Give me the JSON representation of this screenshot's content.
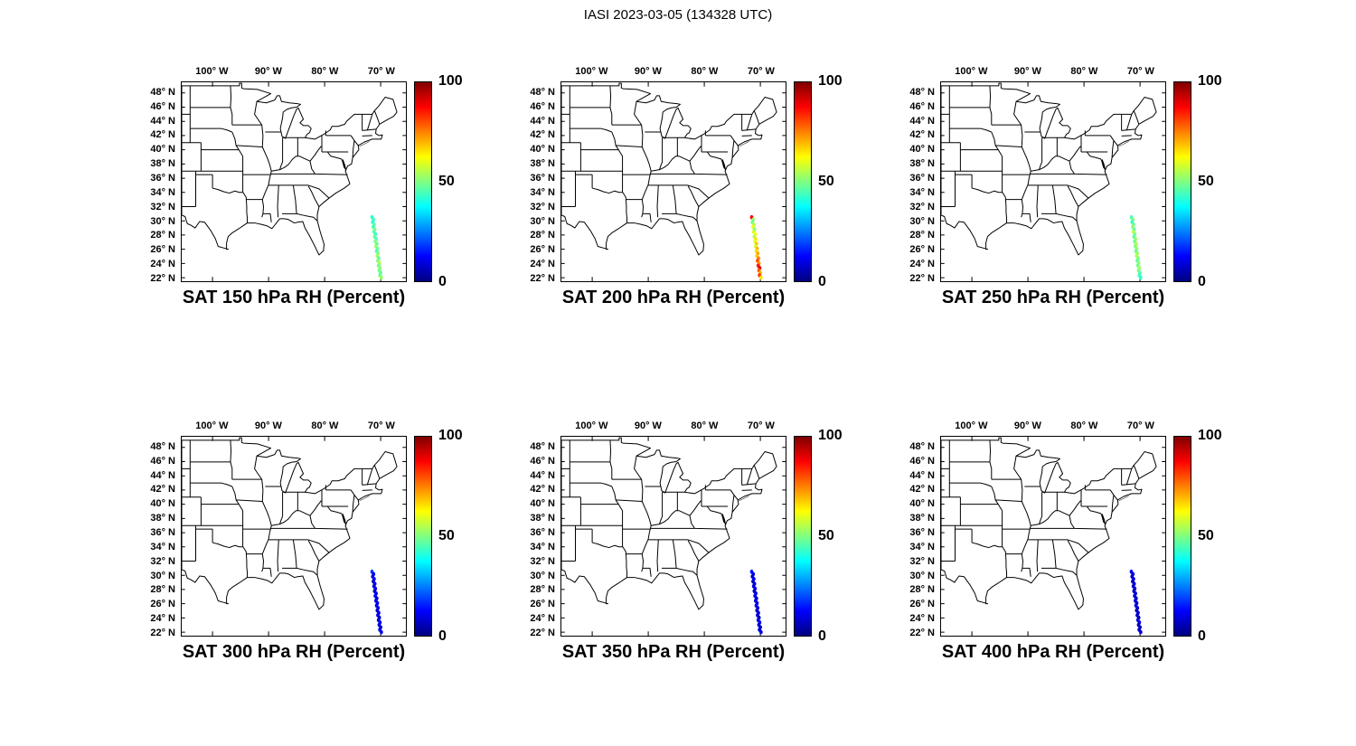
{
  "figure": {
    "title": "IASI 2023-03-05 (134328 UTC)"
  },
  "axes": {
    "lon_range": [
      -105.5,
      -65.5
    ],
    "lat_range": [
      21.5,
      49.5
    ],
    "x_ticks": [
      {
        "label": "100° W",
        "lon": -100
      },
      {
        "label": "90° W",
        "lon": -90
      },
      {
        "label": "80° W",
        "lon": -80
      },
      {
        "label": "70° W",
        "lon": -70
      }
    ],
    "y_ticks": [
      {
        "label": "48° N",
        "lat": 48
      },
      {
        "label": "46° N",
        "lat": 46
      },
      {
        "label": "44° N",
        "lat": 44
      },
      {
        "label": "42° N",
        "lat": 42
      },
      {
        "label": "40° N",
        "lat": 40
      },
      {
        "label": "38° N",
        "lat": 38
      },
      {
        "label": "36° N",
        "lat": 36
      },
      {
        "label": "34° N",
        "lat": 34
      },
      {
        "label": "32° N",
        "lat": 32
      },
      {
        "label": "30° N",
        "lat": 30
      },
      {
        "label": "28° N",
        "lat": 28
      },
      {
        "label": "26° N",
        "lat": 26
      },
      {
        "label": "24° N",
        "lat": 24
      },
      {
        "label": "22° N",
        "lat": 22
      }
    ]
  },
  "colorbar": {
    "min": 0,
    "max": 100,
    "tick_labels": [
      "100",
      "50",
      "0"
    ],
    "colormap": "jet",
    "gradient_top_to_bottom": [
      "#800000",
      "#ff0000",
      "#ff8000",
      "#ffff00",
      "#80ff80",
      "#00ffff",
      "#0080ff",
      "#0000ff",
      "#000080"
    ]
  },
  "colors": {
    "frame": "#000000",
    "background": "#ffffff",
    "map_outline": "#000000"
  },
  "chart_data": {
    "type": "scatter",
    "figure_title": "IASI 2023-03-05 (134328 UTC)",
    "value_units": "Percent",
    "value_range": [
      0,
      100
    ],
    "track_lonlat": [
      [
        -71.55,
        30.5
      ],
      [
        -71.27,
        30.16
      ],
      [
        -71.43,
        29.82
      ],
      [
        -71.16,
        29.48
      ],
      [
        -71.32,
        29.14
      ],
      [
        -71.04,
        28.8
      ],
      [
        -71.2,
        28.46
      ],
      [
        -70.93,
        28.12
      ],
      [
        -71.09,
        27.78
      ],
      [
        -70.81,
        27.44
      ],
      [
        -70.97,
        27.1
      ],
      [
        -70.69,
        26.76
      ],
      [
        -70.85,
        26.42
      ],
      [
        -70.58,
        26.08
      ],
      [
        -70.74,
        25.74
      ],
      [
        -70.46,
        25.4
      ],
      [
        -70.62,
        25.06
      ],
      [
        -70.34,
        24.72
      ],
      [
        -70.51,
        24.38
      ],
      [
        -70.23,
        24.04
      ],
      [
        -70.39,
        23.7
      ],
      [
        -70.11,
        23.36
      ],
      [
        -70.27,
        23.02
      ],
      [
        -70.0,
        22.68
      ],
      [
        -70.16,
        22.34
      ],
      [
        -69.88,
        22.0
      ]
    ],
    "panels": [
      {
        "title": "SAT 150 hPa RH (Percent)",
        "level_hPa": 150,
        "rh_values": [
          42,
          45,
          40,
          47,
          44,
          50,
          46,
          43,
          48,
          45,
          50,
          47,
          52,
          48,
          45,
          50,
          53,
          47,
          50,
          55,
          48,
          52,
          50,
          46,
          49,
          52
        ]
      },
      {
        "title": "SAT 200 hPa RH (Percent)",
        "level_hPa": 200,
        "rh_values": [
          88,
          52,
          48,
          55,
          60,
          50,
          58,
          62,
          55,
          65,
          60,
          68,
          58,
          70,
          65,
          72,
          68,
          75,
          80,
          72,
          85,
          90,
          78,
          70,
          82,
          65
        ]
      },
      {
        "title": "SAT 250 hPa RH (Percent)",
        "level_hPa": 250,
        "rh_values": [
          45,
          50,
          42,
          48,
          52,
          46,
          55,
          50,
          47,
          52,
          48,
          55,
          50,
          53,
          48,
          52,
          55,
          50,
          47,
          52,
          49,
          53,
          50,
          46,
          44,
          42
        ]
      },
      {
        "title": "SAT 300 hPa RH (Percent)",
        "level_hPa": 300,
        "rh_values": [
          18,
          12,
          10,
          14,
          8,
          12,
          9,
          11,
          7,
          10,
          12,
          8,
          11,
          9,
          12,
          10,
          8,
          11,
          9,
          7,
          10,
          12,
          9,
          8,
          10,
          11
        ]
      },
      {
        "title": "SAT 350 hPa RH (Percent)",
        "level_hPa": 350,
        "rh_values": [
          15,
          10,
          8,
          12,
          7,
          10,
          8,
          11,
          6,
          9,
          11,
          7,
          10,
          8,
          11,
          9,
          7,
          10,
          8,
          6,
          9,
          11,
          8,
          7,
          9,
          10
        ]
      },
      {
        "title": "SAT 400 hPa RH (Percent)",
        "level_hPa": 400,
        "rh_values": [
          12,
          9,
          7,
          10,
          6,
          9,
          7,
          10,
          5,
          8,
          10,
          6,
          9,
          7,
          10,
          8,
          6,
          9,
          7,
          5,
          8,
          10,
          7,
          6,
          8,
          9
        ]
      }
    ]
  }
}
